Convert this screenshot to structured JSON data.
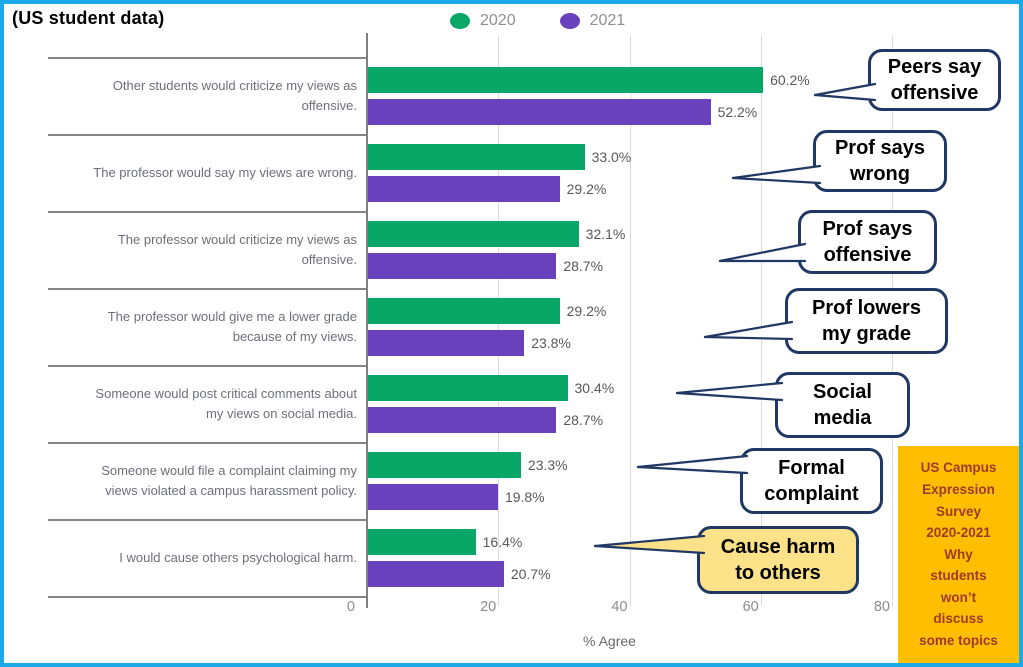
{
  "title": "(US student data)",
  "legend": {
    "items": [
      {
        "label": "2020",
        "color": "#09a767"
      },
      {
        "label": "2021",
        "color": "#6a41bd"
      }
    ]
  },
  "chart_data": {
    "type": "bar",
    "orientation": "horizontal",
    "xlabel": "% Agree",
    "xlim": [
      0,
      80
    ],
    "xticks": [
      "0",
      "20",
      "40",
      "60",
      "80"
    ],
    "xtick_values": [
      0,
      20,
      40,
      60,
      80
    ],
    "grid": "vertical-gridlines-on",
    "legend_position": "top",
    "categories": [
      "Other students would criticize my views as offensive.",
      "The professor would say my views are wrong.",
      "The professor would criticize my views as offensive.",
      "The professor would give me a lower grade because of my views.",
      "Someone would post critical comments about my views on social media.",
      "Someone would file a complaint claiming my views violated a campus harassment policy.",
      "I would cause others psychological harm."
    ],
    "series": [
      {
        "name": "2020",
        "color": "#09a767",
        "values": [
          60.2,
          33.0,
          32.1,
          29.2,
          30.4,
          23.3,
          16.4
        ],
        "labels": [
          "60.2%",
          "33.0%",
          "32.1%",
          "29.2%",
          "30.4%",
          "23.3%",
          "16.4%"
        ]
      },
      {
        "name": "2021",
        "color": "#6a41bd",
        "values": [
          52.2,
          29.2,
          28.7,
          23.8,
          28.7,
          19.8,
          20.7
        ],
        "labels": [
          "52.2%",
          "29.2%",
          "28.7%",
          "23.8%",
          "28.7%",
          "19.8%",
          "20.7%"
        ]
      }
    ]
  },
  "callouts": [
    {
      "text": "Peers say\noffensive",
      "fill": "#ffffff"
    },
    {
      "text": "Prof says\nwrong",
      "fill": "#ffffff"
    },
    {
      "text": "Prof says\noffensive",
      "fill": "#ffffff"
    },
    {
      "text": "Prof lowers\nmy grade",
      "fill": "#ffffff"
    },
    {
      "text": "Social\nmedia",
      "fill": "#ffffff"
    },
    {
      "text": "Formal\ncomplaint",
      "fill": "#ffffff"
    },
    {
      "text": "Cause harm\nto others",
      "fill": "#fbe187"
    }
  ],
  "callout_border_color": "#1f3864",
  "source_box": {
    "text": "US Campus\nExpression\nSurvey\n2020-2021\nWhy\nstudents\nwon’t\ndiscuss\nsome topics",
    "bg": "#ffbf00",
    "color": "#9e3a26"
  },
  "colors": {
    "frame": "#1ca9e9",
    "axis_line": "#7f7f7f",
    "separator_line": "#858585",
    "gridline": "#dcdcdc",
    "category_text": "#6e6e7a",
    "value_text": "#595959",
    "tick_text": "#8c8c8c"
  }
}
